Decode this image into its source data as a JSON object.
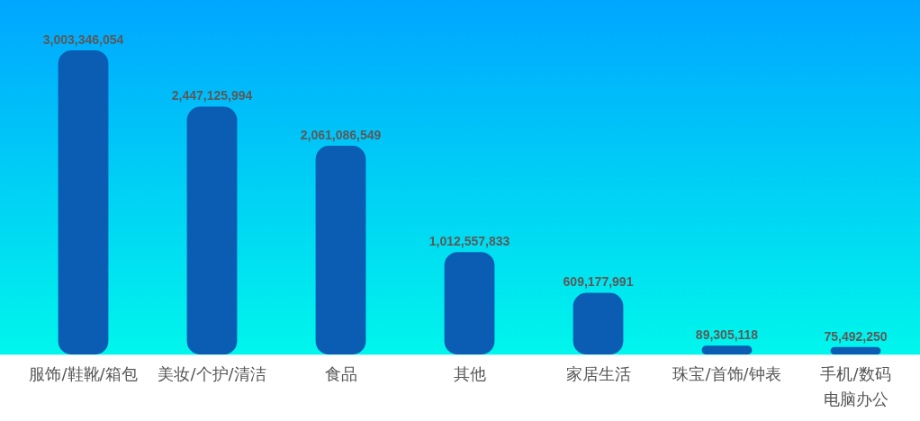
{
  "chart_data": {
    "type": "bar",
    "categories": [
      "服饰/鞋靴/箱包",
      "美妆/个护/清洁",
      "食品",
      "其他",
      "家居生活",
      "珠宝/首饰/钟表",
      "手机/数码电脑办公"
    ],
    "values": [
      3003346054,
      2447125994,
      2061086549,
      1012557833,
      609177991,
      89305118,
      75492250
    ],
    "value_labels": [
      "3,003,346,054",
      "2,447,125,994",
      "2,061,086,549",
      "1,012,557,833",
      "609,177,991",
      "89,305,118",
      "75,492,250"
    ],
    "color": "#0a5db3"
  }
}
